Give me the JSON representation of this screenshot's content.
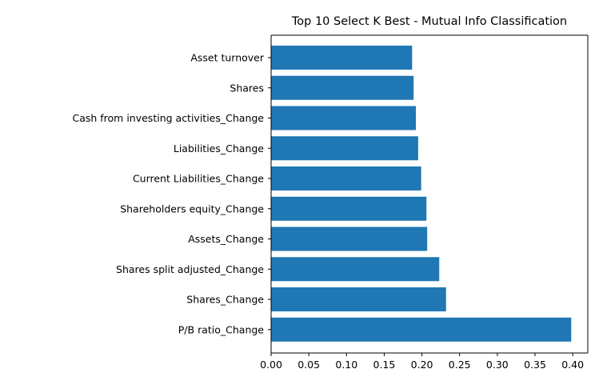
{
  "chart_data": {
    "type": "bar",
    "orientation": "horizontal",
    "title": "Top 10 Select K Best - Mutual Info Classification",
    "xlabel": "",
    "ylabel": "",
    "xlim": [
      0,
      0.42
    ],
    "xticks": [
      "0.00",
      "0.05",
      "0.10",
      "0.15",
      "0.20",
      "0.25",
      "0.30",
      "0.35",
      "0.40"
    ],
    "grid": false,
    "bar_color": "#1f77b4",
    "categories": [
      "Asset turnover",
      "Shares",
      "Cash from investing activities_Change",
      "Liabilities_Change",
      "Current Liabilities_Change",
      "Shareholders equity_Change",
      "Assets_Change",
      "Shares split adjusted_Change",
      "Shares_Change",
      "P/B ratio_Change"
    ],
    "values": [
      0.187,
      0.189,
      0.192,
      0.195,
      0.199,
      0.206,
      0.207,
      0.223,
      0.232,
      0.398
    ]
  }
}
